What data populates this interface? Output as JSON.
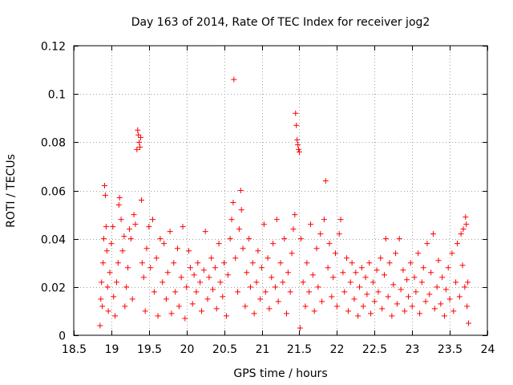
{
  "chart_data": {
    "type": "scatter",
    "title": "Day 163 of 2014, Rate Of TEC Index for receiver jog2",
    "xlabel": "GPS time / hours",
    "ylabel": "ROTI / TECUs",
    "xlim": [
      18.5,
      24
    ],
    "ylim": [
      0,
      0.12
    ],
    "xticks": [
      "18.5",
      "19",
      "19.5",
      "20",
      "20.5",
      "21",
      "21.5",
      "22",
      "22.5",
      "23",
      "23.5",
      "24"
    ],
    "yticks": [
      "0",
      "0.02",
      "0.04",
      "0.06",
      "0.08",
      "0.1",
      "0.12"
    ],
    "grid": true,
    "marker": "+",
    "color": "#ff0000",
    "series": [
      {
        "name": "ROTI",
        "points": [
          [
            18.85,
            0.004
          ],
          [
            18.86,
            0.015
          ],
          [
            18.87,
            0.022
          ],
          [
            18.88,
            0.012
          ],
          [
            18.89,
            0.03
          ],
          [
            18.9,
            0.04
          ],
          [
            18.91,
            0.062
          ],
          [
            18.92,
            0.058
          ],
          [
            18.93,
            0.045
          ],
          [
            18.94,
            0.035
          ],
          [
            18.95,
            0.02
          ],
          [
            18.96,
            0.01
          ],
          [
            18.98,
            0.026
          ],
          [
            19.0,
            0.038
          ],
          [
            19.02,
            0.045
          ],
          [
            19.03,
            0.016
          ],
          [
            19.05,
            0.008
          ],
          [
            19.07,
            0.022
          ],
          [
            19.09,
            0.03
          ],
          [
            19.1,
            0.054
          ],
          [
            19.11,
            0.057
          ],
          [
            19.13,
            0.048
          ],
          [
            19.15,
            0.035
          ],
          [
            19.17,
            0.041
          ],
          [
            19.18,
            0.012
          ],
          [
            19.2,
            0.02
          ],
          [
            19.22,
            0.028
          ],
          [
            19.24,
            0.044
          ],
          [
            19.26,
            0.04
          ],
          [
            19.28,
            0.015
          ],
          [
            19.3,
            0.05
          ],
          [
            19.32,
            0.046
          ],
          [
            19.34,
            0.077
          ],
          [
            19.35,
            0.085
          ],
          [
            19.36,
            0.083
          ],
          [
            19.37,
            0.08
          ],
          [
            19.38,
            0.078
          ],
          [
            19.39,
            0.082
          ],
          [
            19.4,
            0.056
          ],
          [
            19.41,
            0.03
          ],
          [
            19.43,
            0.024
          ],
          [
            19.45,
            0.01
          ],
          [
            19.47,
            0.036
          ],
          [
            19.5,
            0.045
          ],
          [
            19.52,
            0.028
          ],
          [
            19.55,
            0.048
          ],
          [
            19.57,
            0.018
          ],
          [
            19.6,
            0.032
          ],
          [
            19.62,
            0.008
          ],
          [
            19.65,
            0.04
          ],
          [
            19.68,
            0.022
          ],
          [
            19.7,
            0.038
          ],
          [
            19.73,
            0.015
          ],
          [
            19.75,
            0.026
          ],
          [
            19.78,
            0.043
          ],
          [
            19.8,
            0.009
          ],
          [
            19.83,
            0.03
          ],
          [
            19.85,
            0.018
          ],
          [
            19.88,
            0.036
          ],
          [
            19.9,
            0.012
          ],
          [
            19.93,
            0.024
          ],
          [
            19.95,
            0.045
          ],
          [
            19.98,
            0.007
          ],
          [
            20.0,
            0.02
          ],
          [
            20.03,
            0.035
          ],
          [
            20.05,
            0.028
          ],
          [
            20.08,
            0.013
          ],
          [
            20.1,
            0.025
          ],
          [
            20.13,
            0.018
          ],
          [
            20.15,
            0.03
          ],
          [
            20.18,
            0.022
          ],
          [
            20.2,
            0.01
          ],
          [
            20.23,
            0.027
          ],
          [
            20.25,
            0.043
          ],
          [
            20.28,
            0.015
          ],
          [
            20.3,
            0.024
          ],
          [
            20.33,
            0.032
          ],
          [
            20.35,
            0.019
          ],
          [
            20.38,
            0.028
          ],
          [
            20.4,
            0.011
          ],
          [
            20.43,
            0.038
          ],
          [
            20.45,
            0.022
          ],
          [
            20.48,
            0.016
          ],
          [
            20.5,
            0.03
          ],
          [
            20.53,
            0.008
          ],
          [
            20.55,
            0.025
          ],
          [
            20.58,
            0.04
          ],
          [
            20.6,
            0.048
          ],
          [
            20.62,
            0.055
          ],
          [
            20.63,
            0.106
          ],
          [
            20.65,
            0.032
          ],
          [
            20.68,
            0.018
          ],
          [
            20.7,
            0.044
          ],
          [
            20.72,
            0.06
          ],
          [
            20.73,
            0.052
          ],
          [
            20.75,
            0.036
          ],
          [
            20.78,
            0.012
          ],
          [
            20.8,
            0.026
          ],
          [
            20.83,
            0.04
          ],
          [
            20.85,
            0.02
          ],
          [
            20.88,
            0.03
          ],
          [
            20.9,
            0.009
          ],
          [
            20.93,
            0.022
          ],
          [
            20.95,
            0.035
          ],
          [
            20.98,
            0.015
          ],
          [
            21.0,
            0.028
          ],
          [
            21.03,
            0.046
          ],
          [
            21.05,
            0.018
          ],
          [
            21.08,
            0.032
          ],
          [
            21.1,
            0.011
          ],
          [
            21.13,
            0.024
          ],
          [
            21.15,
            0.038
          ],
          [
            21.18,
            0.02
          ],
          [
            21.2,
            0.048
          ],
          [
            21.22,
            0.014
          ],
          [
            21.25,
            0.03
          ],
          [
            21.28,
            0.022
          ],
          [
            21.3,
            0.04
          ],
          [
            21.33,
            0.009
          ],
          [
            21.35,
            0.026
          ],
          [
            21.38,
            0.018
          ],
          [
            21.4,
            0.034
          ],
          [
            21.42,
            0.044
          ],
          [
            21.44,
            0.05
          ],
          [
            21.45,
            0.092
          ],
          [
            21.46,
            0.087
          ],
          [
            21.47,
            0.081
          ],
          [
            21.48,
            0.079
          ],
          [
            21.49,
            0.077
          ],
          [
            21.5,
            0.076
          ],
          [
            21.51,
            0.003
          ],
          [
            21.52,
            0.04
          ],
          [
            21.55,
            0.022
          ],
          [
            21.58,
            0.012
          ],
          [
            21.6,
            0.03
          ],
          [
            21.63,
            0.018
          ],
          [
            21.65,
            0.046
          ],
          [
            21.68,
            0.025
          ],
          [
            21.7,
            0.01
          ],
          [
            21.73,
            0.036
          ],
          [
            21.75,
            0.02
          ],
          [
            21.78,
            0.042
          ],
          [
            21.8,
            0.014
          ],
          [
            21.83,
            0.048
          ],
          [
            21.85,
            0.064
          ],
          [
            21.88,
            0.028
          ],
          [
            21.9,
            0.038
          ],
          [
            21.93,
            0.016
          ],
          [
            21.95,
            0.024
          ],
          [
            21.98,
            0.034
          ],
          [
            22.0,
            0.012
          ],
          [
            22.03,
            0.042
          ],
          [
            22.05,
            0.048
          ],
          [
            22.08,
            0.026
          ],
          [
            22.1,
            0.018
          ],
          [
            22.13,
            0.032
          ],
          [
            22.15,
            0.01
          ],
          [
            22.18,
            0.022
          ],
          [
            22.2,
            0.03
          ],
          [
            22.23,
            0.015
          ],
          [
            22.25,
            0.026
          ],
          [
            22.28,
            0.008
          ],
          [
            22.3,
            0.02
          ],
          [
            22.33,
            0.028
          ],
          [
            22.35,
            0.012
          ],
          [
            22.38,
            0.024
          ],
          [
            22.4,
            0.017
          ],
          [
            22.43,
            0.03
          ],
          [
            22.45,
            0.009
          ],
          [
            22.48,
            0.022
          ],
          [
            22.5,
            0.014
          ],
          [
            22.53,
            0.027
          ],
          [
            22.55,
            0.018
          ],
          [
            22.58,
            0.032
          ],
          [
            22.6,
            0.011
          ],
          [
            22.63,
            0.025
          ],
          [
            22.65,
            0.04
          ],
          [
            22.68,
            0.016
          ],
          [
            22.7,
            0.03
          ],
          [
            22.73,
            0.008
          ],
          [
            22.75,
            0.021
          ],
          [
            22.78,
            0.034
          ],
          [
            22.8,
            0.013
          ],
          [
            22.83,
            0.04
          ],
          [
            22.85,
            0.019
          ],
          [
            22.88,
            0.027
          ],
          [
            22.9,
            0.01
          ],
          [
            22.93,
            0.023
          ],
          [
            22.95,
            0.016
          ],
          [
            22.98,
            0.03
          ],
          [
            23.0,
            0.012
          ],
          [
            23.03,
            0.024
          ],
          [
            23.05,
            0.018
          ],
          [
            23.08,
            0.034
          ],
          [
            23.1,
            0.009
          ],
          [
            23.13,
            0.022
          ],
          [
            23.15,
            0.028
          ],
          [
            23.18,
            0.014
          ],
          [
            23.2,
            0.038
          ],
          [
            23.23,
            0.017
          ],
          [
            23.25,
            0.026
          ],
          [
            23.28,
            0.042
          ],
          [
            23.3,
            0.011
          ],
          [
            23.33,
            0.02
          ],
          [
            23.35,
            0.031
          ],
          [
            23.38,
            0.013
          ],
          [
            23.4,
            0.024
          ],
          [
            23.43,
            0.008
          ],
          [
            23.45,
            0.019
          ],
          [
            23.48,
            0.028
          ],
          [
            23.5,
            0.015
          ],
          [
            23.53,
            0.034
          ],
          [
            23.55,
            0.01
          ],
          [
            23.58,
            0.022
          ],
          [
            23.6,
            0.038
          ],
          [
            23.63,
            0.016
          ],
          [
            23.65,
            0.042
          ],
          [
            23.67,
            0.029
          ],
          [
            23.68,
            0.044
          ],
          [
            23.7,
            0.02
          ],
          [
            23.71,
            0.049
          ],
          [
            23.72,
            0.046
          ],
          [
            23.73,
            0.012
          ],
          [
            23.74,
            0.022
          ],
          [
            23.75,
            0.005
          ]
        ]
      }
    ]
  }
}
